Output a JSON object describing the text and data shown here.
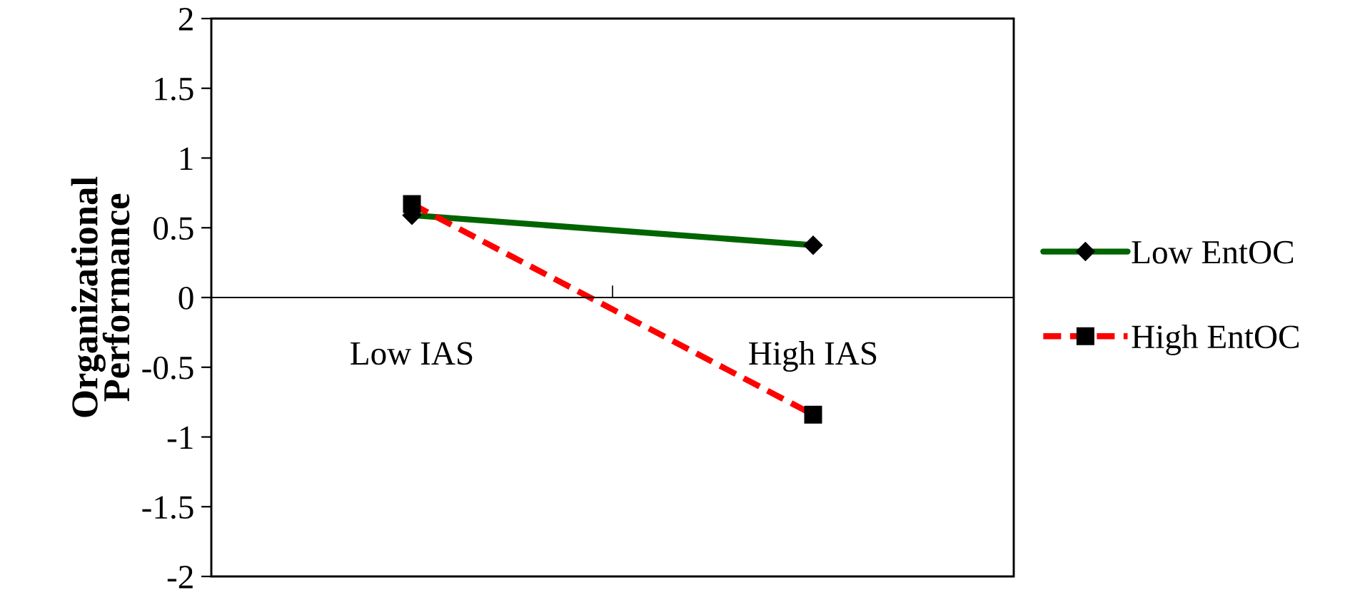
{
  "chart_data": {
    "type": "line",
    "ylabel": "Organizational\nPerformance",
    "categories": [
      "Low IAS",
      "High IAS"
    ],
    "series": [
      {
        "name": "Low EntOC",
        "color": "#006400",
        "values": [
          0.59,
          0.375
        ],
        "marker": "diamond",
        "line_style": "solid"
      },
      {
        "name": "High EntOC",
        "color": "#ff0000",
        "values": [
          0.67,
          -0.84
        ],
        "marker": "square",
        "line_style": "dashed"
      }
    ],
    "ylim": [
      -2,
      2
    ],
    "yticks": [
      -2,
      -1.5,
      -1,
      -0.5,
      0,
      0.5,
      1,
      1.5,
      2
    ],
    "grid": false,
    "legend": "right"
  }
}
